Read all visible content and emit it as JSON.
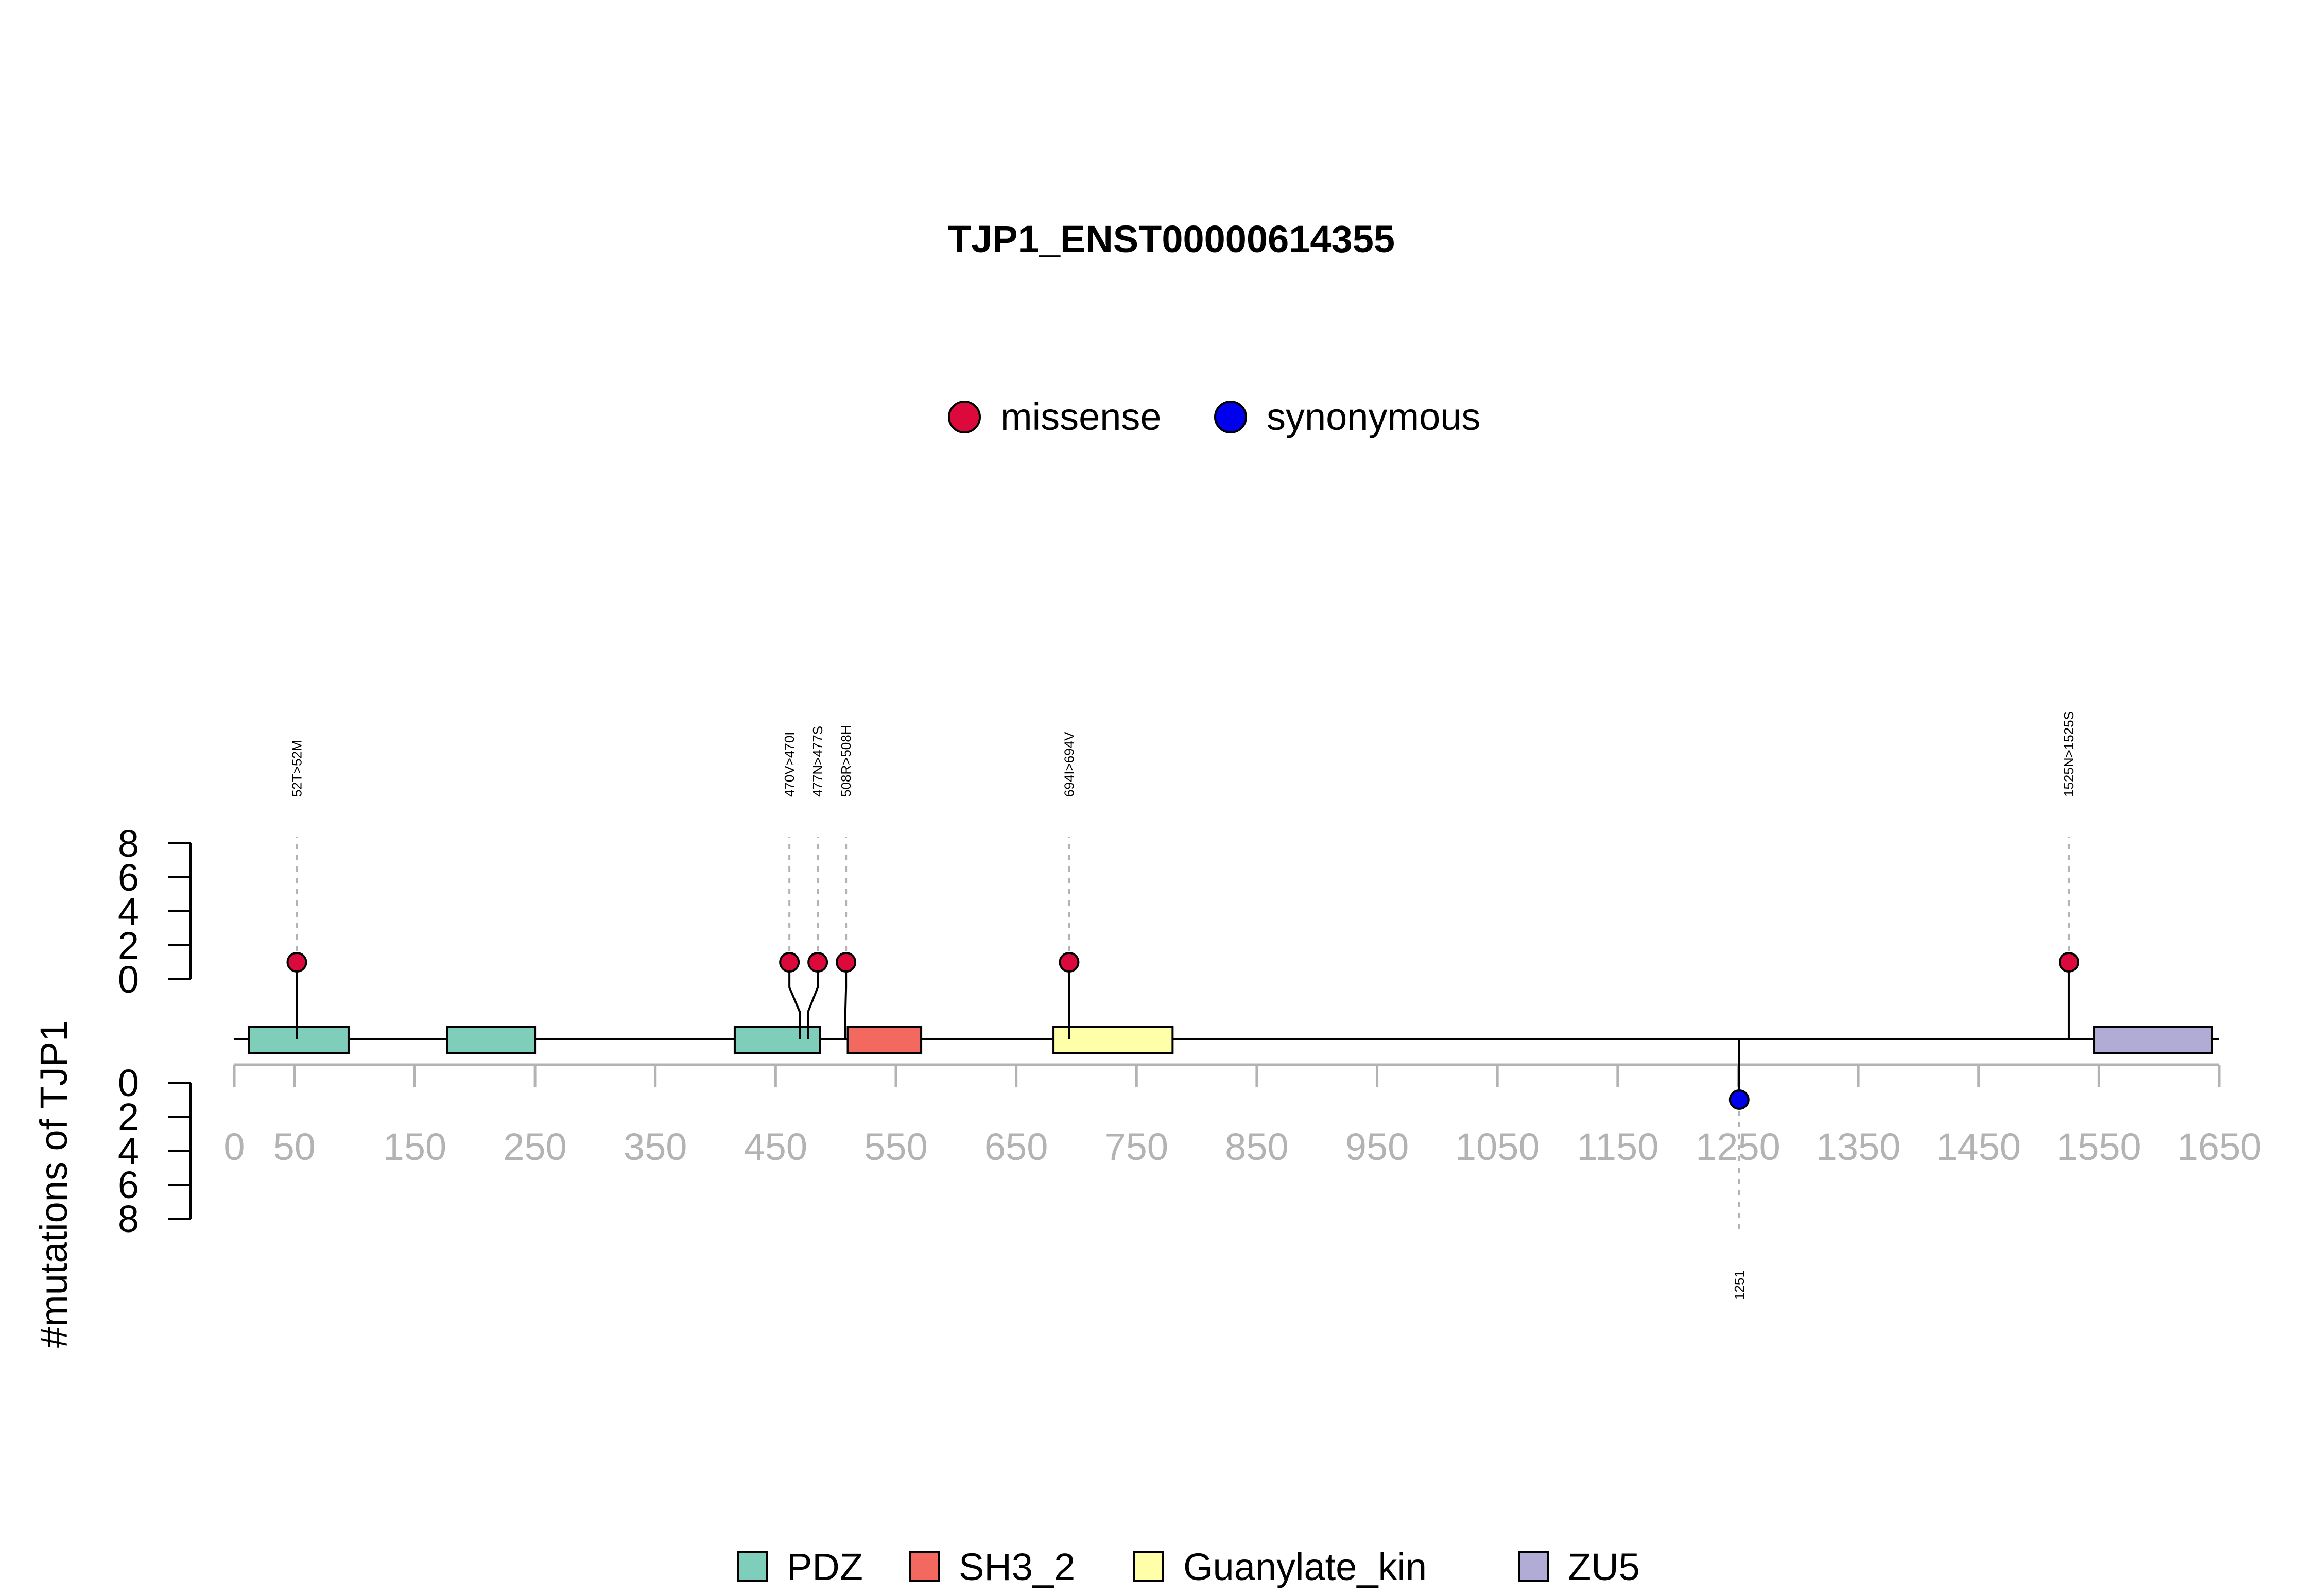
{
  "chart_data": {
    "type": "lollipop",
    "title": "TJP1_ENST00000614355",
    "ylabel": "#mutations of TJP1",
    "xlim": [
      0,
      1650
    ],
    "x_ticks": [
      0,
      50,
      150,
      250,
      350,
      450,
      550,
      650,
      750,
      850,
      950,
      1050,
      1150,
      1250,
      1350,
      1450,
      1550,
      1650
    ],
    "y_ticks_upper": [
      0,
      2,
      4,
      6,
      8
    ],
    "y_ticks_lower": [
      0,
      2,
      4,
      6,
      8
    ],
    "ylim": [
      0,
      8
    ],
    "mutation_legend": [
      {
        "name": "missense",
        "color": "#dc0a3c"
      },
      {
        "name": "synonymous",
        "color": "#0000ee"
      }
    ],
    "domain_legend": [
      {
        "name": "PDZ",
        "color": "#7fcdbb"
      },
      {
        "name": "SH3_2",
        "color": "#f4695f"
      },
      {
        "name": "Guanylate_kin",
        "color": "#ffffaa"
      },
      {
        "name": "ZU5",
        "color": "#b1acd6"
      }
    ],
    "domains": [
      {
        "name": "PDZ",
        "start": 12,
        "end": 95
      },
      {
        "name": "PDZ",
        "start": 177,
        "end": 250
      },
      {
        "name": "PDZ",
        "start": 416,
        "end": 487
      },
      {
        "name": "SH3_2",
        "start": 510,
        "end": 571
      },
      {
        "name": "Guanylate_kin",
        "start": 681,
        "end": 780
      },
      {
        "name": "ZU5",
        "start": 1546,
        "end": 1644
      }
    ],
    "mutations": [
      {
        "label": "52T>52M",
        "position": 52,
        "count": 1,
        "type": "missense",
        "side": "up"
      },
      {
        "label": "470V>470I",
        "position": 470,
        "count": 1,
        "type": "missense",
        "side": "up"
      },
      {
        "label": "477N>477S",
        "position": 477,
        "count": 1,
        "type": "missense",
        "side": "up"
      },
      {
        "label": "508R>508H",
        "position": 508,
        "count": 1,
        "type": "missense",
        "side": "up"
      },
      {
        "label": "694I>694V",
        "position": 694,
        "count": 1,
        "type": "missense",
        "side": "up"
      },
      {
        "label": "1525N>1525S",
        "position": 1525,
        "count": 1,
        "type": "missense",
        "side": "up"
      },
      {
        "label": "1251",
        "position": 1251,
        "count": 1,
        "type": "synonymous",
        "side": "down"
      }
    ]
  }
}
